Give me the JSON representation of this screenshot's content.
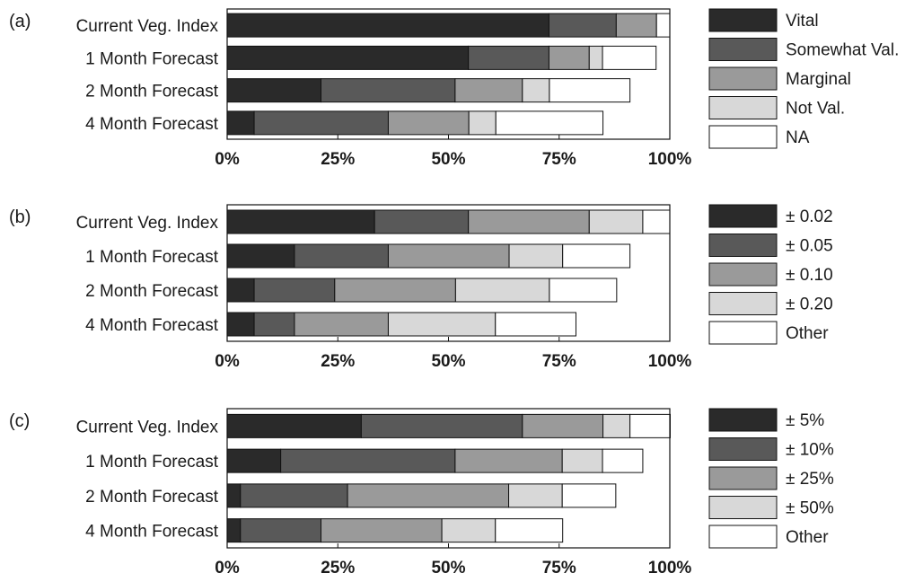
{
  "chart_data": [
    {
      "type": "bar",
      "stacked": true,
      "orientation": "horizontal",
      "panel_label": "(a)",
      "categories": [
        "Current Veg. Index",
        "1 Month Forecast",
        "2 Month Forecast",
        "4 Month Forecast"
      ],
      "series": [
        {
          "name": "Vital",
          "values": [
            72.7,
            54.5,
            21.2,
            6.1
          ]
        },
        {
          "name": "Somewhat Val.",
          "values": [
            15.2,
            18.2,
            30.3,
            30.3
          ]
        },
        {
          "name": "Marginal",
          "values": [
            9.1,
            9.1,
            15.2,
            18.2
          ]
        },
        {
          "name": "Not Val.",
          "values": [
            0,
            3.0,
            6.1,
            6.1
          ]
        },
        {
          "name": "NA",
          "values": [
            3.0,
            12.1,
            18.2,
            24.2
          ]
        }
      ],
      "xlim": [
        0,
        100
      ],
      "xticks": [
        "0%",
        "25%",
        "50%",
        "75%",
        "100%"
      ],
      "legend_position": "right",
      "colors": [
        "#2a2a2a",
        "#595959",
        "#9a9a9a",
        "#d8d8d8",
        "#ffffff"
      ]
    },
    {
      "type": "bar",
      "stacked": true,
      "orientation": "horizontal",
      "panel_label": "(b)",
      "categories": [
        "Current Veg. Index",
        "1 Month Forecast",
        "2 Month Forecast",
        "4 Month Forecast"
      ],
      "series": [
        {
          "name": "± 0.02",
          "values": [
            33.3,
            15.2,
            6.1,
            6.1
          ]
        },
        {
          "name": "± 0.05",
          "values": [
            21.2,
            21.2,
            18.2,
            9.1
          ]
        },
        {
          "name": "± 0.10",
          "values": [
            27.3,
            27.3,
            27.3,
            21.2
          ]
        },
        {
          "name": "± 0.20",
          "values": [
            12.1,
            12.1,
            21.2,
            24.2
          ]
        },
        {
          "name": "Other",
          "values": [
            6.1,
            15.2,
            15.2,
            18.2
          ]
        }
      ],
      "xlim": [
        0,
        100
      ],
      "xticks": [
        "0%",
        "25%",
        "50%",
        "75%",
        "100%"
      ],
      "legend_position": "right",
      "colors": [
        "#2a2a2a",
        "#595959",
        "#9a9a9a",
        "#d8d8d8",
        "#ffffff"
      ]
    },
    {
      "type": "bar",
      "stacked": true,
      "orientation": "horizontal",
      "panel_label": "(c)",
      "categories": [
        "Current Veg. Index",
        "1 Month Forecast",
        "2 Month Forecast",
        "4 Month Forecast"
      ],
      "series": [
        {
          "name": "± 5%",
          "values": [
            30.3,
            12.1,
            3.0,
            3.0
          ]
        },
        {
          "name": "± 10%",
          "values": [
            36.4,
            39.4,
            24.2,
            18.2
          ]
        },
        {
          "name": "± 25%",
          "values": [
            18.2,
            24.2,
            36.4,
            27.3
          ]
        },
        {
          "name": "± 50%",
          "values": [
            6.1,
            9.1,
            12.1,
            12.1
          ]
        },
        {
          "name": "Other",
          "values": [
            9.1,
            9.1,
            12.1,
            15.2
          ]
        }
      ],
      "xlim": [
        0,
        100
      ],
      "xticks": [
        "0%",
        "25%",
        "50%",
        "75%",
        "100%"
      ],
      "legend_position": "right",
      "colors": [
        "#2a2a2a",
        "#595959",
        "#9a9a9a",
        "#d8d8d8",
        "#ffffff"
      ]
    }
  ]
}
